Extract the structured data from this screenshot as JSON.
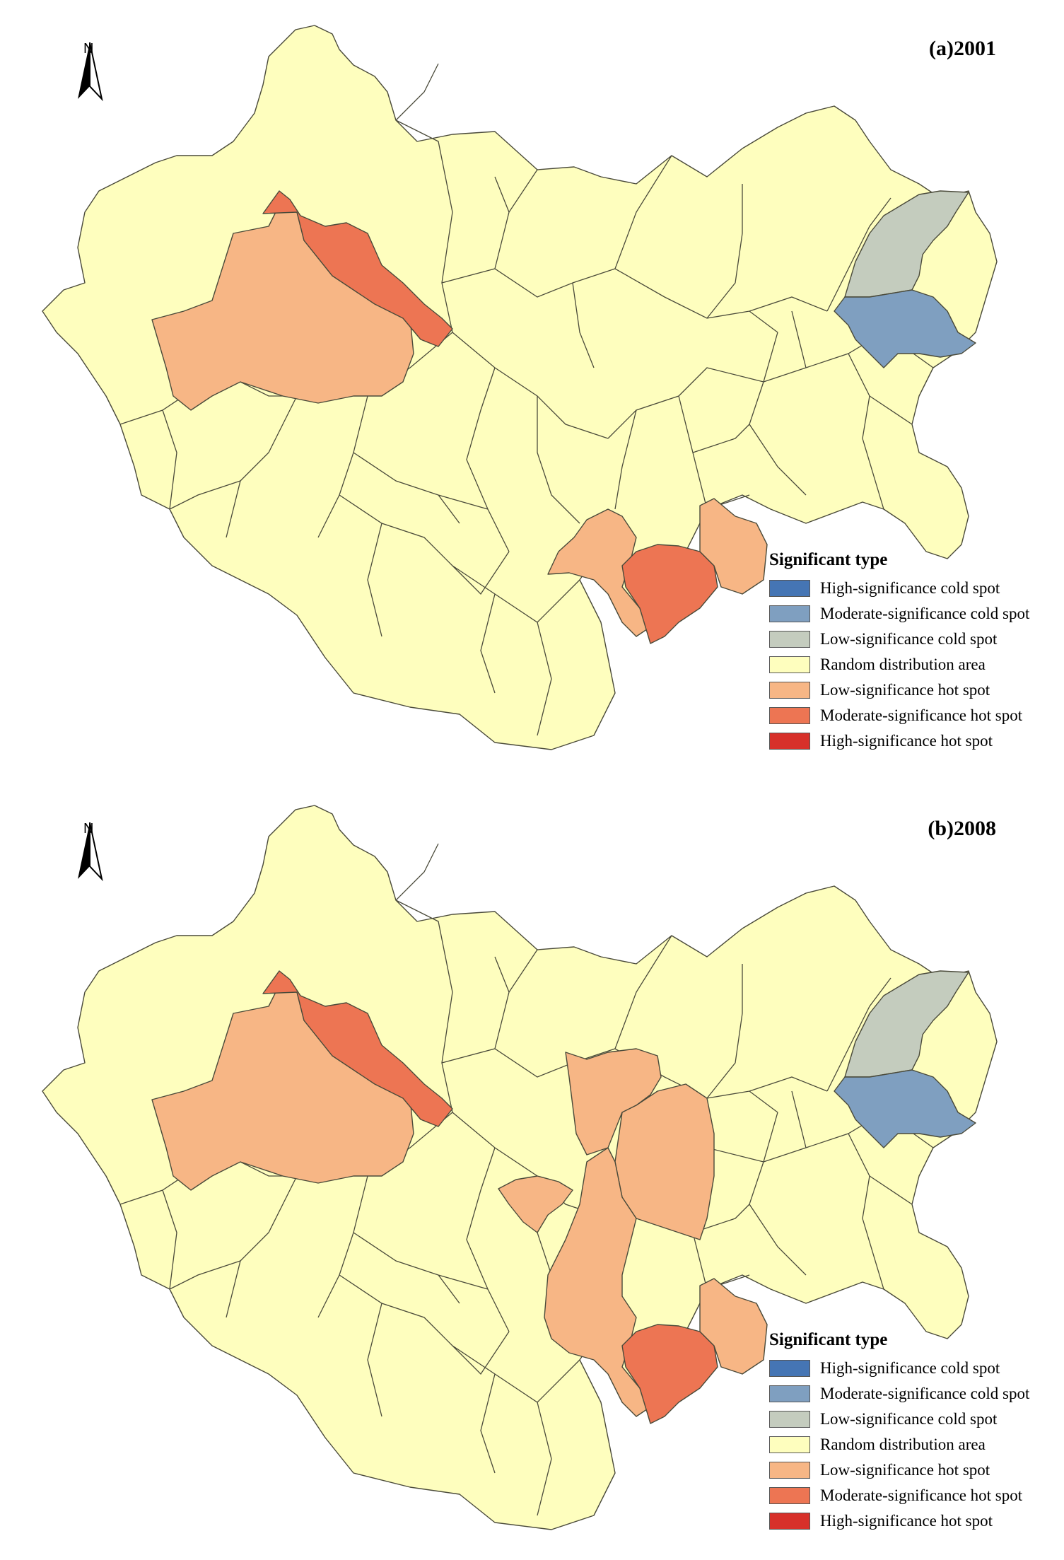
{
  "panels": [
    {
      "id": "a",
      "title": "(a)2001",
      "north_label": "N",
      "legend": {
        "title": "Significant type",
        "items": [
          {
            "label": "High-significance cold spot",
            "color": "#4575b4"
          },
          {
            "label": "Moderate-significance cold spot",
            "color": "#7f9fc0"
          },
          {
            "label": "Low-significance cold spot",
            "color": "#c4ccbe"
          },
          {
            "label": "Random distribution area",
            "color": "#fefebe"
          },
          {
            "label": "Low-significance hot spot",
            "color": "#f7b685"
          },
          {
            "label": "Moderate-significance hot spot",
            "color": "#ed7553"
          },
          {
            "label": "High-significance hot spot",
            "color": "#d7302a"
          }
        ]
      },
      "highlighted_regions": [
        {
          "name": "west-band",
          "class": 5
        },
        {
          "name": "west-large",
          "class": 4
        },
        {
          "name": "south-center-west",
          "class": 4
        },
        {
          "name": "south-center-core",
          "class": 5
        },
        {
          "name": "south-center-east",
          "class": 4
        },
        {
          "name": "northeast-upper",
          "class": 2
        },
        {
          "name": "northeast-lower",
          "class": 1
        }
      ]
    },
    {
      "id": "b",
      "title": "(b)2008",
      "north_label": "N",
      "legend": {
        "title": "Significant type",
        "items": [
          {
            "label": "High-significance cold spot",
            "color": "#4575b4"
          },
          {
            "label": "Moderate-significance cold spot",
            "color": "#7f9fc0"
          },
          {
            "label": "Low-significance cold spot",
            "color": "#c4ccbe"
          },
          {
            "label": "Random distribution area",
            "color": "#fefebe"
          },
          {
            "label": "Low-significance hot spot",
            "color": "#f7b685"
          },
          {
            "label": "Moderate-significance hot spot",
            "color": "#ed7553"
          },
          {
            "label": "High-significance hot spot",
            "color": "#d7302a"
          }
        ]
      },
      "highlighted_regions": [
        {
          "name": "west-band",
          "class": 5
        },
        {
          "name": "west-large",
          "class": 4
        },
        {
          "name": "center-small",
          "class": 4
        },
        {
          "name": "center-north",
          "class": 4
        },
        {
          "name": "center-east",
          "class": 4
        },
        {
          "name": "south-center-west",
          "class": 4
        },
        {
          "name": "south-center-core",
          "class": 5
        },
        {
          "name": "south-center-east",
          "class": 4
        },
        {
          "name": "northeast-upper",
          "class": 2
        },
        {
          "name": "northeast-lower",
          "class": 1
        }
      ]
    }
  ]
}
